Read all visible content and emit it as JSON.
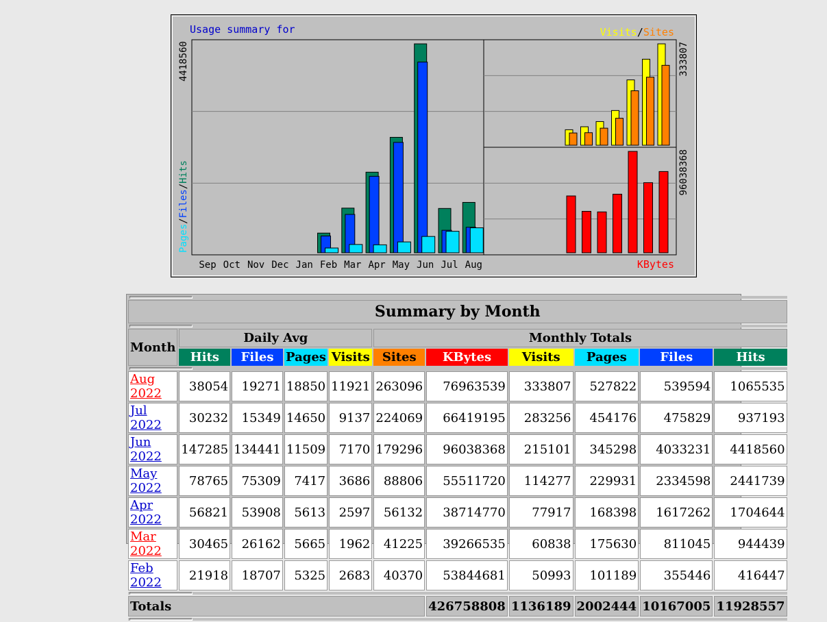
{
  "chart_data": {
    "type": "bar",
    "title": "Usage summary for",
    "categories": [
      "Sep",
      "Oct",
      "Nov",
      "Dec",
      "Jan",
      "Feb",
      "Mar",
      "Apr",
      "May",
      "Jun",
      "Jul",
      "Aug"
    ],
    "left_panel": {
      "ylabel_parts": [
        "Pages",
        "/",
        "Files",
        "/",
        "Hits"
      ],
      "max_label": "4418560",
      "ymax": 4418560,
      "series": [
        {
          "name": "Hits",
          "color": "#00805c",
          "values": [
            0,
            0,
            0,
            0,
            0,
            416447,
            944439,
            1704644,
            2441739,
            4418560,
            937193,
            1065535
          ]
        },
        {
          "name": "Files",
          "color": "#0040ff",
          "values": [
            0,
            0,
            0,
            0,
            0,
            355446,
            811045,
            1617262,
            2334598,
            4033231,
            475829,
            539594
          ]
        },
        {
          "name": "Pages",
          "color": "#00e0ff",
          "values": [
            0,
            0,
            0,
            0,
            0,
            101189,
            175630,
            168398,
            229931,
            345298,
            454176,
            527822
          ]
        }
      ]
    },
    "top_right_panel": {
      "legend_parts": [
        "Visits",
        "/",
        "Sites"
      ],
      "max_label": "333807",
      "ymax": 333807,
      "series": [
        {
          "name": "Visits",
          "color": "#ffff00",
          "values": [
            50993,
            60838,
            77917,
            114277,
            215101,
            283256,
            333807
          ]
        },
        {
          "name": "Sites",
          "color": "#ff8000",
          "values": [
            40370,
            41225,
            56132,
            88806,
            179296,
            224069,
            263096
          ]
        }
      ]
    },
    "bottom_right_panel": {
      "label": "KBytes",
      "max_label": "96038368",
      "ymax": 96038368,
      "series": [
        {
          "name": "KBytes",
          "color": "#ff0000",
          "values": [
            53844681,
            39266535,
            38714770,
            55511720,
            96038368,
            66419195,
            76963539
          ]
        }
      ]
    },
    "grid": true,
    "legend": "top-right"
  },
  "colors": {
    "hits": "#00805c",
    "files": "#0040ff",
    "pages": "#00e0ff",
    "visits": "#ffff00",
    "sites": "#ff8000",
    "kbytes": "#ff0000"
  },
  "summary": {
    "title": "Summary by Month",
    "month_header": "Month",
    "daily_avg_header": "Daily Avg",
    "monthly_totals_header": "Monthly Totals",
    "daily_cols": [
      "Hits",
      "Files",
      "Pages",
      "Visits"
    ],
    "monthly_cols": [
      "Sites",
      "KBytes",
      "Visits",
      "Pages",
      "Files",
      "Hits"
    ],
    "rows": [
      {
        "month": "Aug 2022",
        "link_color": "red",
        "vals": [
          "38054",
          "19271",
          "18850",
          "11921",
          "263096",
          "76963539",
          "333807",
          "527822",
          "539594",
          "1065535"
        ]
      },
      {
        "month": "Jul 2022",
        "link_color": "blue",
        "vals": [
          "30232",
          "15349",
          "14650",
          "9137",
          "224069",
          "66419195",
          "283256",
          "454176",
          "475829",
          "937193"
        ]
      },
      {
        "month": "Jun 2022",
        "link_color": "blue",
        "vals": [
          "147285",
          "134441",
          "11509",
          "7170",
          "179296",
          "96038368",
          "215101",
          "345298",
          "4033231",
          "4418560"
        ]
      },
      {
        "month": "May 2022",
        "link_color": "blue",
        "vals": [
          "78765",
          "75309",
          "7417",
          "3686",
          "88806",
          "55511720",
          "114277",
          "229931",
          "2334598",
          "2441739"
        ]
      },
      {
        "month": "Apr 2022",
        "link_color": "blue",
        "vals": [
          "56821",
          "53908",
          "5613",
          "2597",
          "56132",
          "38714770",
          "77917",
          "168398",
          "1617262",
          "1704644"
        ]
      },
      {
        "month": "Mar 2022",
        "link_color": "red",
        "vals": [
          "30465",
          "26162",
          "5665",
          "1962",
          "41225",
          "39266535",
          "60838",
          "175630",
          "811045",
          "944439"
        ]
      },
      {
        "month": "Feb 2022",
        "link_color": "blue",
        "vals": [
          "21918",
          "18707",
          "5325",
          "2683",
          "40370",
          "53844681",
          "50993",
          "101189",
          "355446",
          "416447"
        ]
      }
    ],
    "totals_label": "Totals",
    "totals": [
      "426758808",
      "1136189",
      "2002444",
      "10167005",
      "11928557"
    ]
  }
}
